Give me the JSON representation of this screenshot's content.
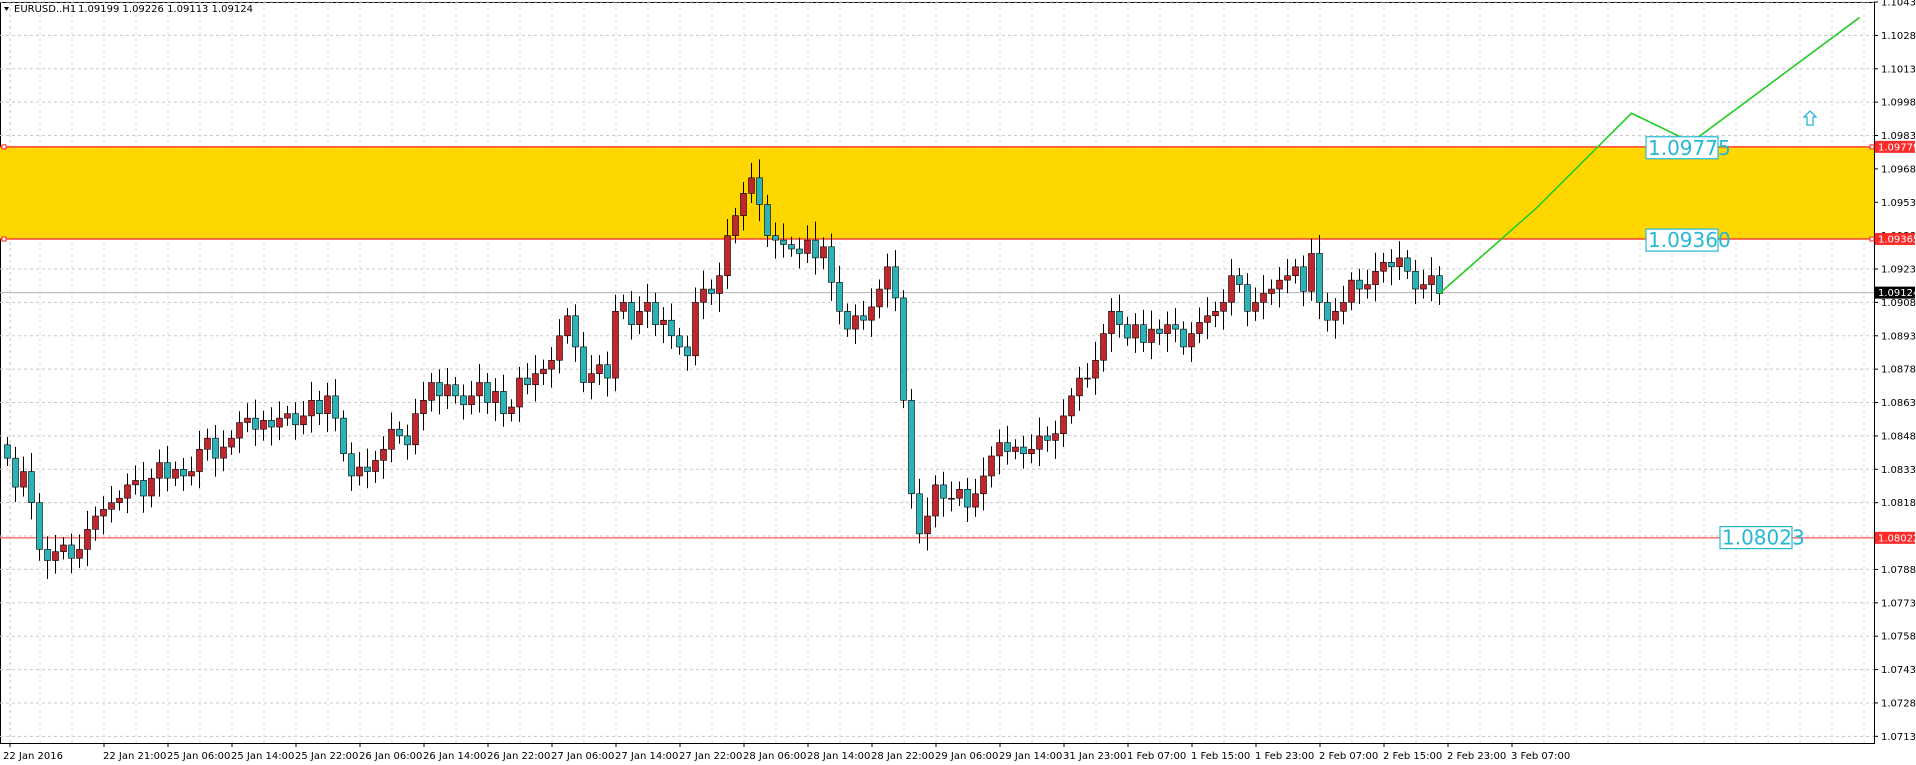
{
  "header": {
    "symbol": "EURUSD..H1",
    "ohlc": "1.09199 1.09226 1.09113 1.09124"
  },
  "colors": {
    "bull": "#c0262c",
    "bear": "#2bb3b8",
    "zone": "#ffd700",
    "zone_border": "#ff2222",
    "support": "#ff6666",
    "projection": "#22cc22",
    "label": "#25b7d3",
    "grid": "#c8c8c8"
  },
  "chart_data": {
    "type": "candlestick",
    "ylim": [
      1.071,
      1.1043
    ],
    "price_ticks": [
      "1.10430",
      "1.10280",
      "1.10130",
      "1.09980",
      "1.09830",
      "1.09680",
      "1.09530",
      "1.09380",
      "1.09230",
      "1.09080",
      "1.08930",
      "1.08780",
      "1.08630",
      "1.08480",
      "1.08330",
      "1.08180",
      "1.08030",
      "1.07880",
      "1.07730",
      "1.07580",
      "1.07430",
      "1.07280",
      "1.07130"
    ],
    "time_ticks": [
      "22 Jan 2016",
      "22 Jan 21:00",
      "25 Jan 06:00",
      "25 Jan 14:00",
      "25 Jan 22:00",
      "26 Jan 06:00",
      "26 Jan 14:00",
      "26 Jan 22:00",
      "27 Jan 06:00",
      "27 Jan 14:00",
      "27 Jan 22:00",
      "28 Jan 06:00",
      "28 Jan 14:00",
      "28 Jan 22:00",
      "29 Jan 06:00",
      "29 Jan 14:00",
      "31 Jan 23:00",
      "1 Feb 07:00",
      "1 Feb 15:00",
      "1 Feb 23:00",
      "2 Feb 07:00",
      "2 Feb 15:00",
      "2 Feb 23:00",
      "3 Feb 07:00"
    ],
    "closes": [
      1.0838,
      1.0825,
      1.0832,
      1.0818,
      1.0797,
      1.0792,
      1.0796,
      1.0799,
      1.0793,
      1.0797,
      1.0806,
      1.0812,
      1.0815,
      1.0818,
      1.082,
      1.0826,
      1.0828,
      1.0821,
      1.0829,
      1.0836,
      1.0829,
      1.0833,
      1.083,
      1.0832,
      1.0842,
      1.0847,
      1.0838,
      1.0843,
      1.0847,
      1.0854,
      1.0856,
      1.0851,
      1.0855,
      1.0852,
      1.0856,
      1.0858,
      1.0853,
      1.0857,
      1.0864,
      1.0858,
      1.0866,
      1.0856,
      1.084,
      1.083,
      1.0834,
      1.0832,
      1.0837,
      1.0842,
      1.0851,
      1.0848,
      1.0844,
      1.0858,
      1.0864,
      1.0872,
      1.0866,
      1.0871,
      1.0866,
      1.0862,
      1.0866,
      1.0872,
      1.0863,
      1.0868,
      1.0858,
      1.0861,
      1.0874,
      1.0871,
      1.0876,
      1.0878,
      1.0882,
      1.0893,
      1.0902,
      1.0888,
      1.0872,
      1.0876,
      1.088,
      1.0874,
      1.0904,
      1.0908,
      1.0898,
      1.0904,
      1.0908,
      1.0898,
      1.09,
      1.0893,
      1.0888,
      1.0884,
      1.0908,
      1.0914,
      1.0912,
      1.092,
      1.0938,
      1.0947,
      1.0957,
      1.0964,
      1.0952,
      1.0938,
      1.0936,
      1.0934,
      1.0932,
      1.093,
      1.0936,
      1.0928,
      1.0933,
      1.0917,
      1.0904,
      1.0896,
      1.0902,
      1.09,
      1.0906,
      1.0914,
      1.0924,
      1.091,
      1.0864,
      1.0822,
      1.0804,
      1.0812,
      1.0826,
      1.082,
      1.082,
      1.0824,
      1.0816,
      1.0822,
      1.083,
      1.0839,
      1.0845,
      1.0841,
      1.0843,
      1.084,
      1.0842,
      1.0848,
      1.0846,
      1.0849,
      1.0857,
      1.0866,
      1.0874,
      1.0874,
      1.0882,
      1.0894,
      1.0904,
      1.0898,
      1.0892,
      1.0898,
      1.089,
      1.0896,
      1.0894,
      1.0898,
      1.0896,
      1.0888,
      1.0894,
      1.0899,
      1.0902,
      1.0904,
      1.0908,
      1.092,
      1.0916,
      1.0904,
      1.0908,
      1.0912,
      1.0914,
      1.0918,
      1.092,
      1.0924,
      1.0913,
      1.093,
      1.0908,
      1.09,
      1.0904,
      1.0908,
      1.0918,
      1.0914,
      1.0916,
      1.0922,
      1.0926,
      1.0924,
      1.0928,
      1.0922,
      1.0914,
      1.0916,
      1.092,
      1.0912
    ],
    "zone": {
      "top": 1.09779,
      "bottom": 1.09365
    },
    "support": 1.08022,
    "current_price": 1.09124,
    "projection": [
      [
        1.0912,
        0
      ],
      [
        1.095,
        8
      ],
      [
        1.0993,
        16
      ],
      [
        1.098,
        21
      ],
      [
        1.1036,
        35
      ]
    ],
    "markers": [
      1.09775,
      1.0936,
      1.08023
    ],
    "price_tags": {
      "zone_top": "1.09779",
      "zone_bottom": "1.09365",
      "current": "1.09124",
      "support": "1.08022"
    }
  },
  "levels": {
    "l1": "1.09775",
    "l2": "1.09360",
    "l3": "1.08023"
  },
  "arrow_icon": "up-arrow-icon"
}
